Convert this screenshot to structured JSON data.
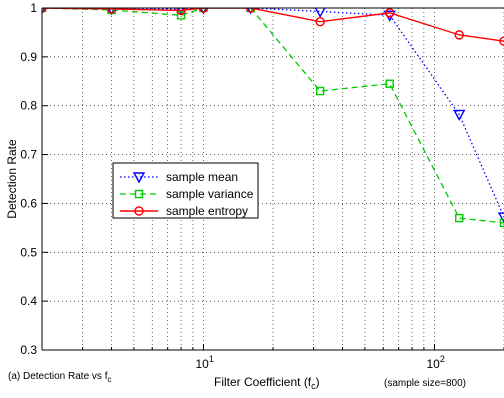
{
  "chart_data": {
    "type": "line",
    "xscale": "log",
    "xlim": [
      2,
      200
    ],
    "ylim": [
      0.3,
      1.0
    ],
    "grid": true,
    "xlabel": "Filter Coefficient (f",
    "xlabel_sub": "c",
    "xlabel_tail": ")",
    "ylabel": "Detection Rate",
    "caption": "(a) Detection Rate vs f",
    "caption_sub": "c",
    "note": "(sample size=800)",
    "y_ticks": [
      {
        "value": 0.3,
        "label": "0.3"
      },
      {
        "value": 0.4,
        "label": "0.4"
      },
      {
        "value": 0.5,
        "label": "0.5"
      },
      {
        "value": 0.6,
        "label": "0.6"
      },
      {
        "value": 0.7,
        "label": "0.7"
      },
      {
        "value": 0.8,
        "label": "0.8"
      },
      {
        "value": 0.9,
        "label": "0.9"
      },
      {
        "value": 1.0,
        "label": "1"
      }
    ],
    "x_major_ticks": [
      {
        "value": 10,
        "base": "10",
        "exp": "1"
      },
      {
        "value": 100,
        "base": "10",
        "exp": "2"
      }
    ],
    "legend_position": "center-left",
    "series": [
      {
        "name": "sample mean",
        "color": "#0000ff",
        "line": "dotted",
        "marker": "triangle-down",
        "x": [
          2,
          4,
          8,
          10,
          16,
          32,
          64,
          128,
          200
        ],
        "y": [
          1.0,
          0.998,
          0.998,
          1.0,
          1.0,
          0.993,
          0.985,
          0.782,
          0.572
        ]
      },
      {
        "name": "sample variance",
        "color": "#00cc00",
        "line": "dashed",
        "marker": "square",
        "x": [
          2,
          4,
          8,
          10,
          16,
          32,
          64,
          128,
          200
        ],
        "y": [
          1.0,
          0.996,
          0.985,
          1.0,
          1.0,
          0.83,
          0.845,
          0.57,
          0.56
        ]
      },
      {
        "name": "sample entropy",
        "color": "#ff0000",
        "line": "solid",
        "marker": "circle",
        "x": [
          2,
          4,
          8,
          10,
          16,
          32,
          64,
          128,
          200
        ],
        "y": [
          1.0,
          0.998,
          0.995,
          1.0,
          1.0,
          0.972,
          0.99,
          0.945,
          0.932
        ]
      }
    ]
  }
}
